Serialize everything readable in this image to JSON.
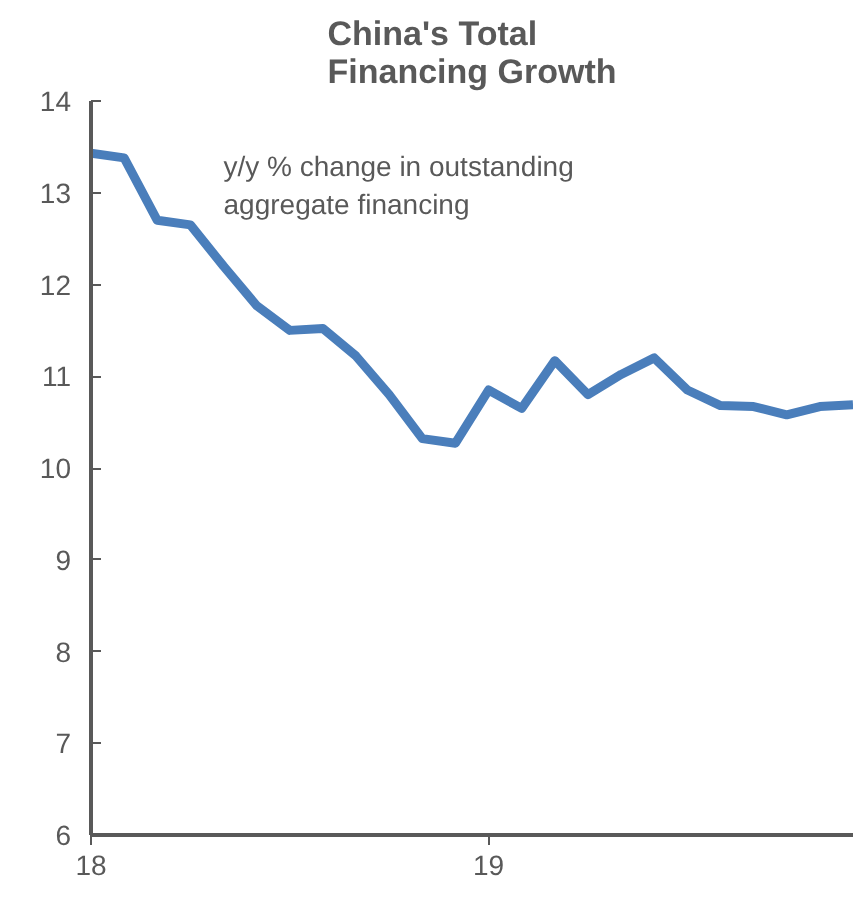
{
  "chart_data": {
    "type": "line",
    "title": "China's Total\nFinancing Growth",
    "annotations": [
      "y/y % change in outstanding\naggregate financing"
    ],
    "categories": [
      "18",
      null,
      null,
      null,
      null,
      null,
      null,
      null,
      null,
      null,
      null,
      null,
      "19",
      null,
      null,
      null,
      null,
      null,
      null,
      null,
      null,
      null,
      null,
      null
    ],
    "series": [
      {
        "color": "#4a7ebb",
        "values": [
          13.43,
          13.38,
          12.7,
          12.65,
          12.2,
          11.77,
          11.5,
          11.52,
          11.22,
          10.8,
          10.32,
          10.27,
          10.85,
          10.65,
          11.17,
          10.8,
          11.02,
          11.2,
          10.85,
          10.68,
          10.67,
          10.58,
          10.67,
          10.69
        ]
      }
    ],
    "ylim": [
      6,
      14
    ],
    "yticks": [
      6,
      7,
      8,
      9,
      10,
      11,
      12,
      13,
      14
    ],
    "grid": false,
    "marker": "none",
    "line_style": "solid"
  }
}
